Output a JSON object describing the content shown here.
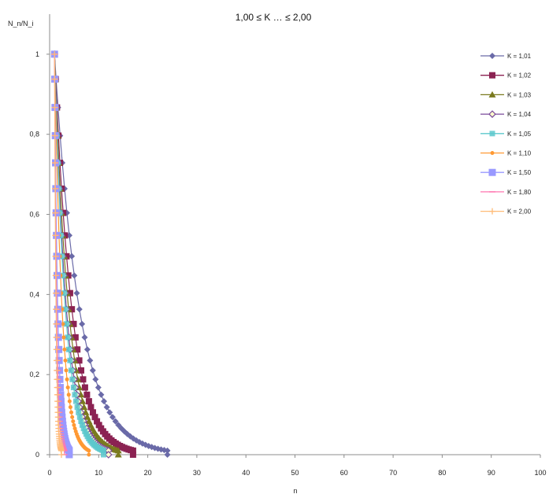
{
  "chart_data": {
    "type": "scatter",
    "title": "1,00 ≤ K … ≤ 2,00",
    "xlabel": "n",
    "ylabel": "N_n/N_i",
    "xlim": [
      0,
      100
    ],
    "ylim": [
      0,
      1.1
    ],
    "x_ticks": [
      "0",
      "10",
      "20",
      "30",
      "40",
      "50",
      "60",
      "70",
      "80",
      "90",
      "100"
    ],
    "y_ticks": [
      "0",
      "0,2",
      "0,4",
      "0,6",
      "0,8",
      "1"
    ],
    "legend_position": "right",
    "series": [
      {
        "name": "K = 1,01",
        "color": "#6a6aa8",
        "marker": "diamond",
        "K": 1.01,
        "x_max": 24
      },
      {
        "name": "K = 1,02",
        "color": "#8b2252",
        "marker": "square",
        "K": 1.02,
        "x_max": 17
      },
      {
        "name": "K = 1,03",
        "color": "#7a7a1e",
        "marker": "triangle",
        "K": 1.03,
        "x_max": 14
      },
      {
        "name": "K = 1,04",
        "color": "#7a4a9a",
        "marker": "diamond-open",
        "K": 1.04,
        "x_max": 12
      },
      {
        "name": "K = 1,05",
        "color": "#5cc8cc",
        "marker": "square-light",
        "K": 1.05,
        "x_max": 11
      },
      {
        "name": "K = 1,10",
        "color": "#ff9933",
        "marker": "circle-small",
        "K": 1.1,
        "x_max": 8
      },
      {
        "name": "K = 1,50",
        "color": "#9999ff",
        "marker": "square-big",
        "K": 1.5,
        "x_max": 4
      },
      {
        "name": "K = 1,80",
        "color": "#ff77b0",
        "marker": "dash",
        "K": 1.8,
        "x_max": 3
      },
      {
        "name": "K = 2,00",
        "color": "#ffbb77",
        "marker": "plus",
        "K": 2.0,
        "x_max": 2.4
      }
    ]
  }
}
